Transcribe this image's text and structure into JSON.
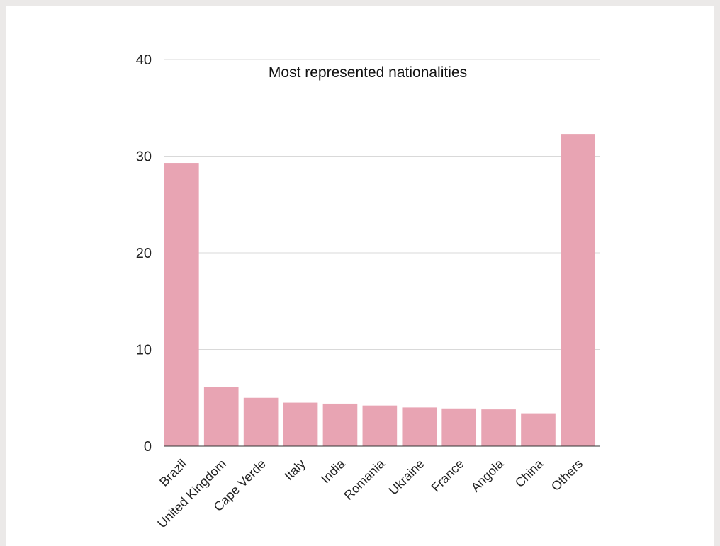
{
  "chart_data": {
    "type": "bar",
    "title": "Most represented nationalities",
    "xlabel": "",
    "ylabel": "",
    "ylim": [
      0,
      40
    ],
    "yticks": [
      0,
      10,
      20,
      30,
      40
    ],
    "grid": true,
    "bar_color": "#e8a4b3",
    "categories": [
      "Brazil",
      "United Kingdom",
      "Cape Verde",
      "Italy",
      "India",
      "Romania",
      "Ukraine",
      "France",
      "Angola",
      "China",
      "Others"
    ],
    "values": [
      29.3,
      6.1,
      5.0,
      4.5,
      4.4,
      4.2,
      4.0,
      3.9,
      3.8,
      3.4,
      32.3
    ]
  }
}
